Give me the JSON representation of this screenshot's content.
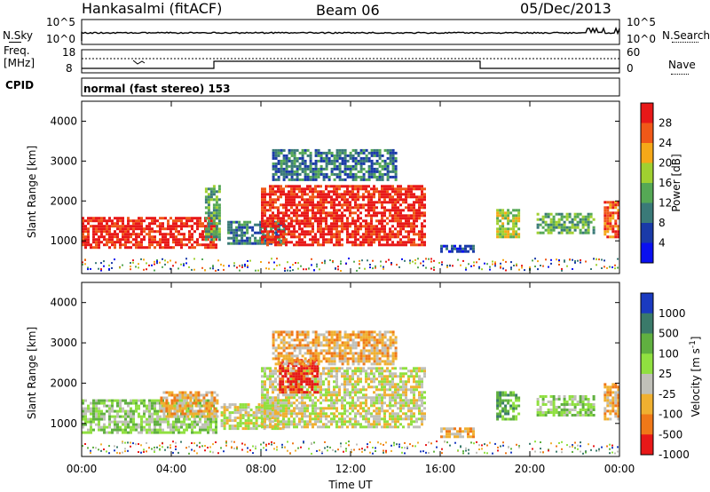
{
  "header": {
    "station": "Hankasalmi (fitACF)",
    "beam": "Beam 06",
    "date": "05/Dec/2013"
  },
  "nsky_panel": {
    "left_label": "N.Sky",
    "right_label": "N.Search",
    "ticks_left": [
      "10^5",
      "10^0"
    ],
    "ticks_right": [
      "10^5",
      "10^0"
    ]
  },
  "freq_panel": {
    "left_label_line1": "Freq.",
    "left_label_line2": "[MHz]",
    "ticks_left": [
      "18",
      "8"
    ],
    "ticks_right": [
      "60",
      "0"
    ],
    "right_label": "Nave",
    "cpid_label": "CPID",
    "cpid_text": "normal (fast stereo) 153"
  },
  "chart_data": [
    {
      "type": "heatmap",
      "title": "",
      "ylabel": "Slant Range [km]",
      "xlabel": "",
      "ylim": [
        180,
        4500
      ],
      "y_ticks": [
        "1000",
        "2000",
        "3000",
        "4000"
      ],
      "colorbar": {
        "label": "Power [dB]",
        "ticks": [
          "4",
          "8",
          "12",
          "16",
          "20",
          "24",
          "28"
        ],
        "colors": [
          "#0a10f0",
          "#1a3aa8",
          "#3a7a78",
          "#55a855",
          "#a0d030",
          "#f5a818",
          "#f05818",
          "#e81818"
        ]
      },
      "regions_note_source": "qualitative echo regions",
      "regions": [
        {
          "t0": 0.0,
          "t1": 6.0,
          "r0": 800,
          "r1": 1600,
          "level": 7
        },
        {
          "t0": 5.5,
          "t1": 6.2,
          "r0": 1000,
          "r1": 2400,
          "level": 3
        },
        {
          "t0": 6.5,
          "t1": 9.0,
          "r0": 900,
          "r1": 1500,
          "level": 2
        },
        {
          "t0": 8.0,
          "t1": 15.3,
          "r0": 900,
          "r1": 2400,
          "level": 7
        },
        {
          "t0": 8.5,
          "t1": 14.0,
          "r0": 2500,
          "r1": 3300,
          "level": 2
        },
        {
          "t0": 16.0,
          "t1": 17.5,
          "r0": 700,
          "r1": 900,
          "level": 1
        },
        {
          "t0": 18.5,
          "t1": 19.5,
          "r0": 1100,
          "r1": 1800,
          "level": 4
        },
        {
          "t0": 20.3,
          "t1": 22.8,
          "r0": 1200,
          "r1": 1700,
          "level": 3
        },
        {
          "t0": 23.3,
          "t1": 24.0,
          "r0": 1100,
          "r1": 2000,
          "level": 6
        }
      ]
    },
    {
      "type": "heatmap",
      "title": "",
      "ylabel": "Slant Range [km]",
      "xlabel": "Time UT",
      "ylim": [
        180,
        4500
      ],
      "y_ticks": [
        "1000",
        "2000",
        "3000",
        "4000"
      ],
      "x_ticks": [
        "00:00",
        "04:00",
        "08:00",
        "12:00",
        "16:00",
        "20:00",
        "00:00"
      ],
      "colorbar": {
        "label": "Velocity [m s^-1]",
        "ticks": [
          "1000",
          "500",
          "100",
          "25",
          "-25",
          "-100",
          "-500",
          "-1000"
        ],
        "colors": [
          "#1a3ac0",
          "#3a7a6a",
          "#60b040",
          "#90e040",
          "#c0c0b8",
          "#f0b030",
          "#f07818",
          "#e81818"
        ]
      },
      "regions": [
        {
          "t0": 0.0,
          "t1": 6.0,
          "r0": 800,
          "r1": 1600,
          "level": 3
        },
        {
          "t0": 3.5,
          "t1": 6.0,
          "r0": 1200,
          "r1": 1800,
          "level": 5
        },
        {
          "t0": 6.2,
          "t1": 9.0,
          "r0": 900,
          "r1": 1500,
          "level": 4
        },
        {
          "t0": 8.0,
          "t1": 15.3,
          "r0": 900,
          "r1": 2400,
          "level": 4
        },
        {
          "t0": 8.8,
          "t1": 10.5,
          "r0": 1800,
          "r1": 2600,
          "level": 7
        },
        {
          "t0": 8.5,
          "t1": 14.0,
          "r0": 2500,
          "r1": 3300,
          "level": 5
        },
        {
          "t0": 16.0,
          "t1": 17.5,
          "r0": 700,
          "r1": 900,
          "level": 5
        },
        {
          "t0": 18.5,
          "t1": 19.5,
          "r0": 1100,
          "r1": 1800,
          "level": 2
        },
        {
          "t0": 20.3,
          "t1": 22.8,
          "r0": 1200,
          "r1": 1700,
          "level": 3
        },
        {
          "t0": 23.3,
          "t1": 24.0,
          "r0": 1100,
          "r1": 2000,
          "level": 5
        }
      ]
    }
  ]
}
